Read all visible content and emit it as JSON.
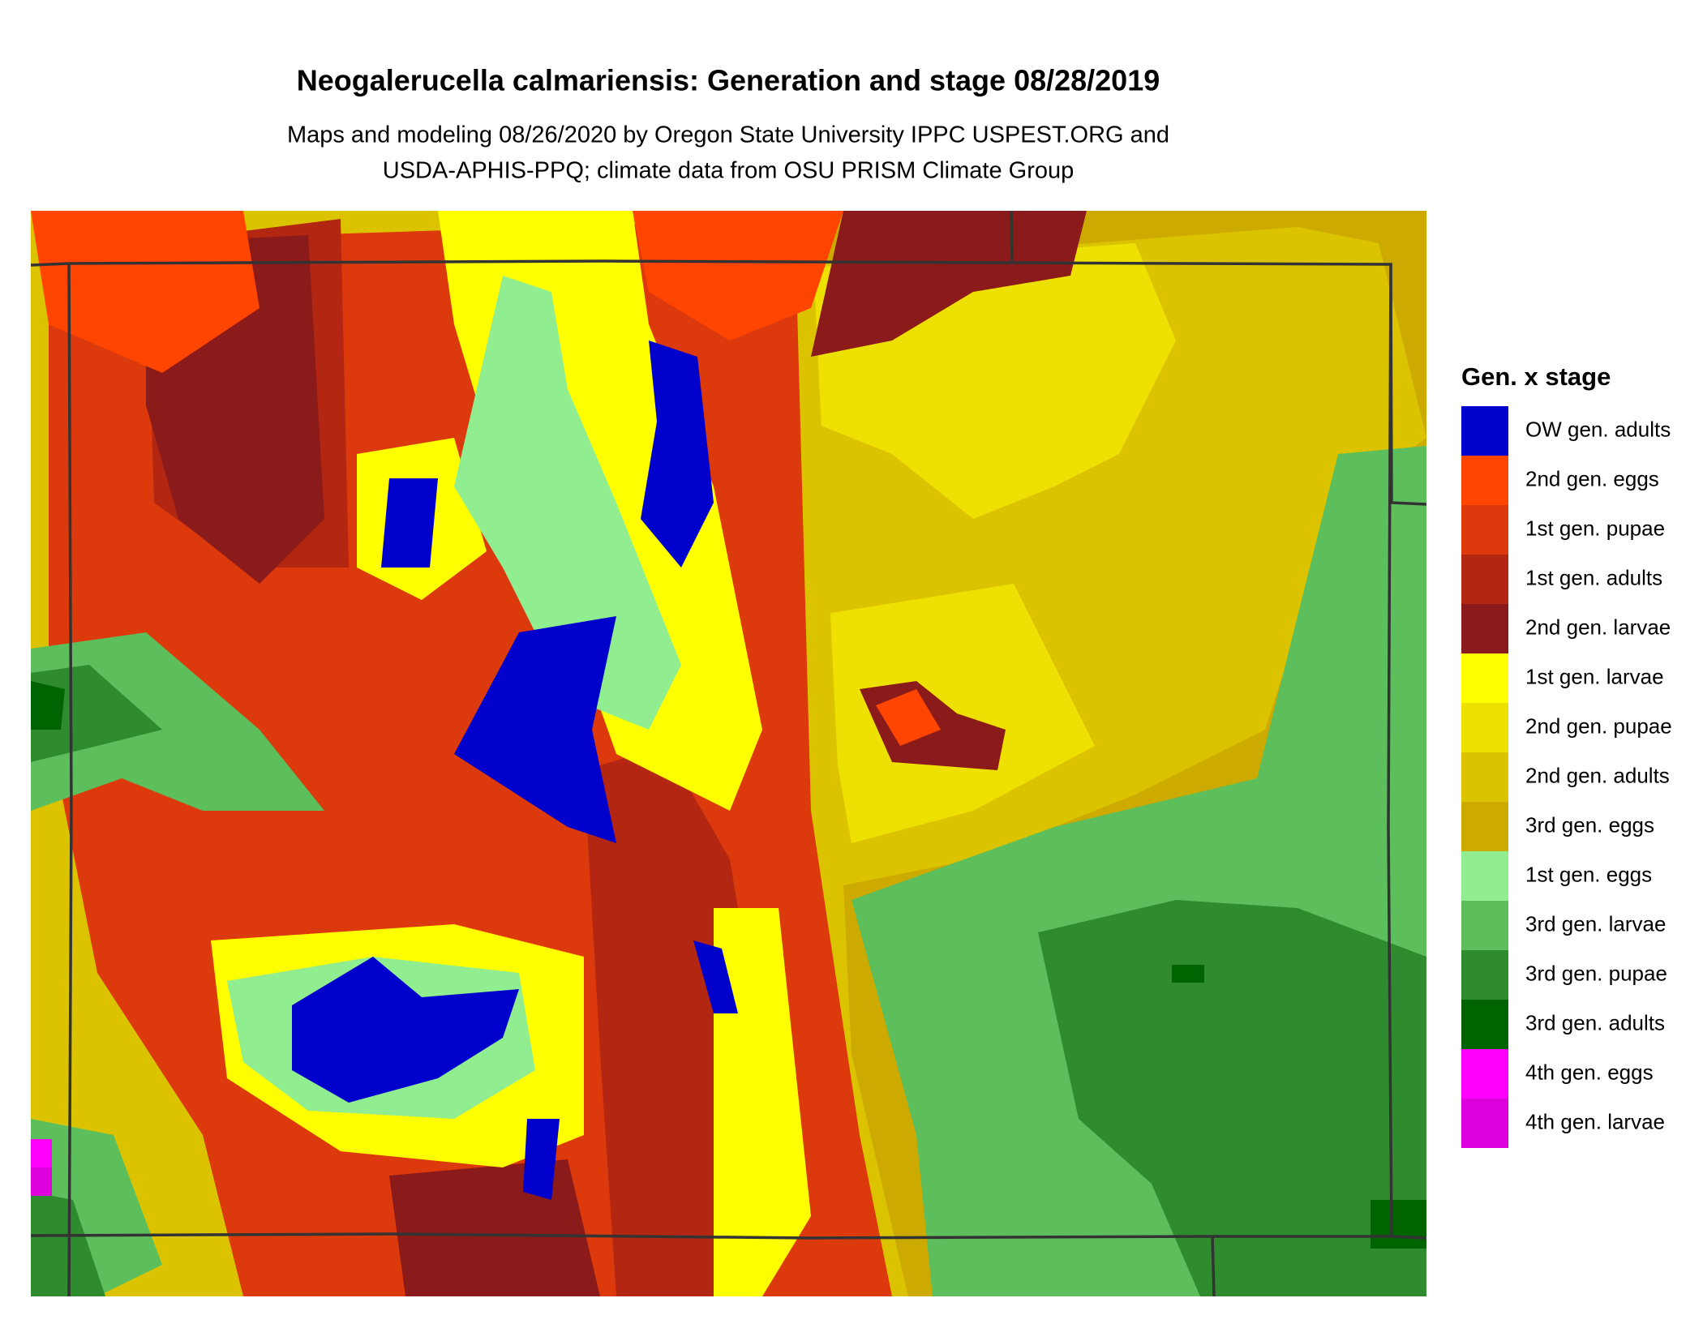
{
  "title": "Neogalerucella calmariensis: Generation and stage 08/28/2019",
  "subtitle": [
    "Maps and modeling 08/26/2020 by Oregon State University IPPC USPEST.ORG and",
    "USDA-APHIS-PPQ; climate data from OSU PRISM Climate Group"
  ],
  "legend": {
    "title": "Gen. x stage",
    "items": [
      {
        "label": "OW gen. adults",
        "color": "#0000cd"
      },
      {
        "label": "2nd gen. eggs",
        "color": "#ff4500"
      },
      {
        "label": "1st gen. pupae",
        "color": "#dc3a0c"
      },
      {
        "label": "1st gen. adults",
        "color": "#b22612"
      },
      {
        "label": "2nd gen. larvae",
        "color": "#8b1a1a"
      },
      {
        "label": "1st gen. larvae",
        "color": "#ffff00"
      },
      {
        "label": "2nd gen. pupae",
        "color": "#eee000"
      },
      {
        "label": "2nd gen. adults",
        "color": "#dcc300"
      },
      {
        "label": "3rd gen. eggs",
        "color": "#cdaa00"
      },
      {
        "label": "1st gen. eggs",
        "color": "#90ee90"
      },
      {
        "label": "3rd gen. larvae",
        "color": "#5cbf5c"
      },
      {
        "label": "3rd gen. pupae",
        "color": "#2e8b2e"
      },
      {
        "label": "3rd gen. adults",
        "color": "#006400"
      },
      {
        "label": "4th gen. eggs",
        "color": "#ff00ff"
      },
      {
        "label": "4th gen. larvae",
        "color": "#dd00dd"
      }
    ]
  }
}
